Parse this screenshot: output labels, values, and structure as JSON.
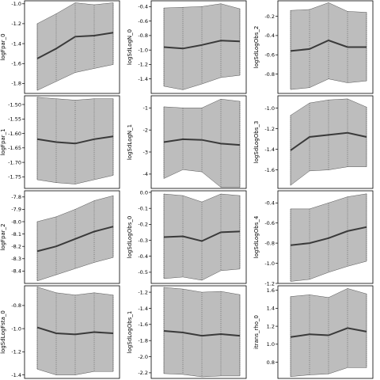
{
  "chart_data": [
    {
      "type": "area",
      "ylabel": "logFpar_0",
      "ylim": [
        -1.9,
        -0.97
      ],
      "ticks": [
        "-1.0",
        "-1.2",
        "-1.4",
        "-1.6",
        "-1.8"
      ],
      "tickvals": [
        -1.0,
        -1.2,
        -1.4,
        -1.6,
        -1.8
      ],
      "x": [
        1,
        2,
        3,
        4,
        5
      ],
      "mean": [
        -1.55,
        -1.45,
        -1.33,
        -1.32,
        -1.29
      ],
      "lower": [
        -1.87,
        -1.78,
        -1.69,
        -1.65,
        -1.61
      ],
      "upper": [
        -1.2,
        -1.1,
        -0.99,
        -1.01,
        -0.99
      ]
    },
    {
      "type": "area",
      "ylabel": "logSdLogN_0",
      "ylim": [
        -1.6,
        -0.32
      ],
      "ticks": [
        "-0.4",
        "-0.6",
        "-0.8",
        "-1.0",
        "-1.2",
        "-1.4"
      ],
      "tickvals": [
        -0.4,
        -0.6,
        -0.8,
        -1.0,
        -1.2,
        -1.4
      ],
      "x": [
        1,
        2,
        3,
        4,
        5
      ],
      "mean": [
        -0.96,
        -0.98,
        -0.93,
        -0.87,
        -0.88
      ],
      "lower": [
        -1.5,
        -1.55,
        -1.47,
        -1.38,
        -1.35
      ],
      "upper": [
        -0.42,
        -0.41,
        -0.4,
        -0.36,
        -0.43
      ]
    },
    {
      "type": "area",
      "ylabel": "logSdLogObs_2",
      "ylim": [
        -1.0,
        -0.04
      ],
      "ticks": [
        "-0.2",
        "-0.4",
        "-0.6",
        "-0.8"
      ],
      "tickvals": [
        -0.2,
        -0.4,
        -0.6,
        -0.8
      ],
      "x": [
        1,
        2,
        3,
        4,
        5
      ],
      "mean": [
        -0.56,
        -0.54,
        -0.45,
        -0.52,
        -0.52
      ],
      "lower": [
        -0.96,
        -0.94,
        -0.85,
        -0.89,
        -0.87
      ],
      "upper": [
        -0.14,
        -0.13,
        -0.06,
        -0.15,
        -0.16
      ]
    },
    {
      "type": "area",
      "ylabel": "logFpar_1",
      "ylim": [
        -1.79,
        -1.47
      ],
      "ticks": [
        "-1.50",
        "-1.55",
        "-1.60",
        "-1.65",
        "-1.70",
        "-1.75"
      ],
      "tickvals": [
        -1.5,
        -1.55,
        -1.6,
        -1.65,
        -1.7,
        -1.75
      ],
      "x": [
        1,
        2,
        3,
        4,
        5
      ],
      "mean": [
        -1.62,
        -1.63,
        -1.635,
        -1.62,
        -1.61
      ],
      "lower": [
        -1.76,
        -1.77,
        -1.775,
        -1.76,
        -1.745
      ],
      "upper": [
        -1.475,
        -1.48,
        -1.485,
        -1.48,
        -1.48
      ]
    },
    {
      "type": "area",
      "ylabel": "logSdLogN_1",
      "ylim": [
        -4.65,
        -0.45
      ],
      "ticks": [
        "-1",
        "-2",
        "-3",
        "-4"
      ],
      "tickvals": [
        -1,
        -2,
        -3,
        -4
      ],
      "x": [
        1,
        2,
        3,
        4,
        5
      ],
      "mean": [
        -2.55,
        -2.42,
        -2.45,
        -2.62,
        -2.68
      ],
      "lower": [
        -4.2,
        -3.8,
        -3.9,
        -4.6,
        -4.6
      ],
      "upper": [
        -0.95,
        -1.0,
        -1.0,
        -0.6,
        -0.7
      ]
    },
    {
      "type": "area",
      "ylabel": "logSdLogObs_3",
      "ylim": [
        -1.78,
        -0.88
      ],
      "ticks": [
        "-1.0",
        "-1.2",
        "-1.4",
        "-1.6"
      ],
      "tickvals": [
        -1.0,
        -1.2,
        -1.4,
        -1.6
      ],
      "x": [
        1,
        2,
        3,
        4,
        5
      ],
      "mean": [
        -1.41,
        -1.28,
        -1.26,
        -1.24,
        -1.28
      ],
      "lower": [
        -1.75,
        -1.61,
        -1.6,
        -1.57,
        -1.57
      ],
      "upper": [
        -1.07,
        -0.95,
        -0.92,
        -0.91,
        -0.99
      ]
    },
    {
      "type": "area",
      "ylabel": "logFpar_2",
      "ylim": [
        -8.5,
        -7.75
      ],
      "ticks": [
        "-7.8",
        "-7.9",
        "-8.0",
        "-8.1",
        "-8.2",
        "-8.3",
        "-8.4"
      ],
      "tickvals": [
        -7.8,
        -7.9,
        -8.0,
        -8.1,
        -8.2,
        -8.3,
        -8.4
      ],
      "x": [
        1,
        2,
        3,
        4,
        5
      ],
      "mean": [
        -8.24,
        -8.2,
        -8.14,
        -8.08,
        -8.04
      ],
      "lower": [
        -8.48,
        -8.43,
        -8.38,
        -8.33,
        -8.29
      ],
      "upper": [
        -8.0,
        -7.96,
        -7.9,
        -7.83,
        -7.79
      ]
    },
    {
      "type": "area",
      "ylabel": "logSdLogObs_0",
      "ylim": [
        -0.57,
        0.01
      ],
      "ticks": [
        "0.0",
        "-0.1",
        "-0.2",
        "-0.3",
        "-0.4",
        "-0.5"
      ],
      "tickvals": [
        0.0,
        -0.1,
        -0.2,
        -0.3,
        -0.4,
        -0.5
      ],
      "x": [
        1,
        2,
        3,
        4,
        5
      ],
      "mean": [
        -0.28,
        -0.275,
        -0.305,
        -0.25,
        -0.245
      ],
      "lower": [
        -0.54,
        -0.53,
        -0.55,
        -0.49,
        -0.48
      ],
      "upper": [
        -0.01,
        -0.02,
        -0.06,
        -0.01,
        -0.02
      ]
    },
    {
      "type": "area",
      "ylabel": "logSdLogObs_4",
      "ylim": [
        -1.2,
        -0.28
      ],
      "ticks": [
        "-0.4",
        "-0.6",
        "-0.8",
        "-1.0",
        "-1.2"
      ],
      "tickvals": [
        -0.4,
        -0.6,
        -0.8,
        -1.0,
        -1.2
      ],
      "x": [
        1,
        2,
        3,
        4,
        5
      ],
      "mean": [
        -0.82,
        -0.8,
        -0.75,
        -0.68,
        -0.64
      ],
      "lower": [
        -1.18,
        -1.16,
        -1.09,
        -1.03,
        -0.98
      ],
      "upper": [
        -0.46,
        -0.46,
        -0.4,
        -0.34,
        -0.31
      ]
    },
    {
      "type": "area",
      "ylabel": "logSdLogFsta_0",
      "ylim": [
        -1.43,
        -0.63
      ],
      "ticks": [
        "-0.8",
        "-1.0",
        "-1.2",
        "-1.4"
      ],
      "tickvals": [
        -0.8,
        -1.0,
        -1.2,
        -1.4
      ],
      "x": [
        1,
        2,
        3,
        4,
        5
      ],
      "mean": [
        -0.99,
        -1.04,
        -1.05,
        -1.03,
        -1.04
      ],
      "lower": [
        -1.35,
        -1.4,
        -1.4,
        -1.37,
        -1.37
      ],
      "upper": [
        -0.64,
        -0.69,
        -0.71,
        -0.69,
        -0.71
      ]
    },
    {
      "type": "area",
      "ylabel": "logSdLogObs_1",
      "ylim": [
        -2.27,
        -1.12
      ],
      "ticks": [
        "-1.2",
        "-1.4",
        "-1.6",
        "-1.8",
        "-2.0",
        "-2.2"
      ],
      "tickvals": [
        -1.2,
        -1.4,
        -1.6,
        -1.8,
        -2.0,
        -2.2
      ],
      "x": [
        1,
        2,
        3,
        4,
        5
      ],
      "mean": [
        -1.68,
        -1.7,
        -1.74,
        -1.72,
        -1.74
      ],
      "lower": [
        -2.21,
        -2.22,
        -2.25,
        -2.24,
        -2.24
      ],
      "upper": [
        -1.14,
        -1.16,
        -1.2,
        -1.19,
        -1.23
      ]
    },
    {
      "type": "area",
      "ylabel": "itrans_rho_0",
      "ylim": [
        0.62,
        1.65
      ],
      "ticks": [
        "1.6",
        "1.4",
        "1.2",
        "1.0",
        "0.8"
      ],
      "tickvals": [
        1.6,
        1.4,
        1.2,
        1.0,
        0.8
      ],
      "x": [
        1,
        2,
        3,
        4,
        5
      ],
      "mean": [
        1.08,
        1.11,
        1.1,
        1.18,
        1.14
      ],
      "lower": [
        0.64,
        0.66,
        0.67,
        0.74,
        0.74
      ],
      "upper": [
        1.53,
        1.55,
        1.52,
        1.62,
        1.56
      ]
    }
  ]
}
